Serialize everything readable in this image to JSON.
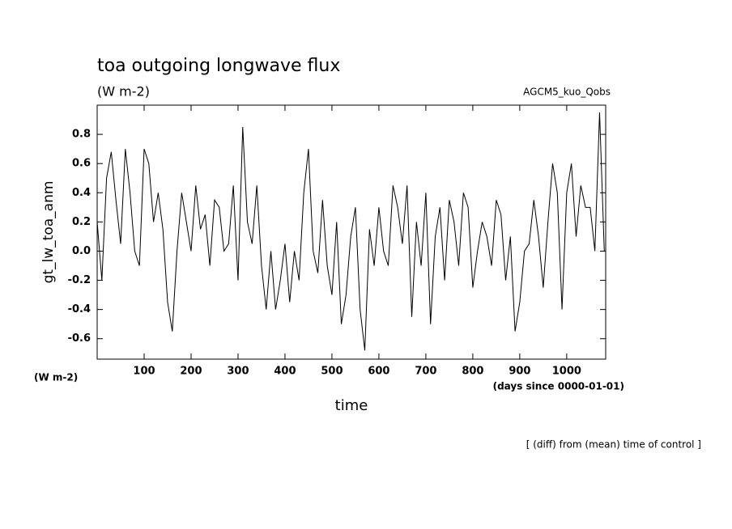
{
  "chart_data": {
    "type": "line",
    "title": "toa outgoing longwave flux",
    "subtitle": "(W m-2)",
    "experiment": "AGCM5_kuo_Qobs",
    "y_label": "gt_lw_toa_anm",
    "y_unit": "(W m-2)",
    "x_label": "time",
    "x_unit": "(days since 0000-01-01)",
    "note": "[ (diff) from (mean) time of control ]",
    "xlim": [
      0,
      1083
    ],
    "ylim": [
      -0.74,
      1.0
    ],
    "xticks": [
      100,
      200,
      300,
      400,
      500,
      600,
      700,
      800,
      900,
      1000
    ],
    "yticks": [
      -0.6,
      -0.4,
      -0.2,
      {
        "value": 0,
        "label": "0.0"
      },
      0.2,
      0.4,
      0.6,
      0.8
    ],
    "color": "#000000",
    "x": [
      0,
      10,
      20,
      30,
      40,
      50,
      60,
      70,
      80,
      90,
      100,
      110,
      120,
      130,
      140,
      150,
      160,
      170,
      180,
      190,
      200,
      210,
      220,
      230,
      240,
      250,
      260,
      270,
      280,
      290,
      300,
      310,
      320,
      330,
      340,
      350,
      360,
      370,
      380,
      390,
      400,
      410,
      420,
      430,
      440,
      450,
      460,
      470,
      480,
      490,
      500,
      510,
      520,
      530,
      540,
      550,
      560,
      570,
      580,
      590,
      600,
      610,
      620,
      630,
      640,
      650,
      660,
      670,
      680,
      690,
      700,
      710,
      720,
      730,
      740,
      750,
      760,
      770,
      780,
      790,
      800,
      810,
      820,
      830,
      840,
      850,
      860,
      870,
      880,
      890,
      900,
      910,
      920,
      930,
      940,
      950,
      960,
      970,
      980,
      990,
      1000,
      1010,
      1020,
      1030,
      1040,
      1050,
      1060,
      1070,
      1080
    ],
    "values": [
      0.2,
      -0.2,
      0.5,
      0.68,
      0.35,
      0.05,
      0.7,
      0.4,
      0,
      -0.1,
      0.7,
      0.6,
      0.2,
      0.4,
      0.15,
      -0.35,
      -0.55,
      0,
      0.4,
      0.2,
      0,
      0.45,
      0.15,
      0.25,
      -0.1,
      0.35,
      0.3,
      0,
      0.05,
      0.45,
      -0.2,
      0.85,
      0.2,
      0.05,
      0.45,
      -0.1,
      -0.4,
      0,
      -0.4,
      -0.2,
      0.05,
      -0.35,
      0,
      -0.2,
      0.4,
      0.7,
      0,
      -0.15,
      0.35,
      -0.1,
      -0.3,
      0.2,
      -0.5,
      -0.3,
      0.1,
      0.3,
      -0.4,
      -0.68,
      0.15,
      -0.1,
      0.3,
      0,
      -0.1,
      0.45,
      0.3,
      0.05,
      0.45,
      -0.45,
      0.2,
      -0.1,
      0.4,
      -0.5,
      0.1,
      0.3,
      -0.2,
      0.35,
      0.2,
      -0.1,
      0.4,
      0.3,
      -0.25,
      0,
      0.2,
      0.1,
      -0.1,
      0.35,
      0.25,
      -0.2,
      0.1,
      -0.55,
      -0.35,
      0,
      0.05,
      0.35,
      0.1,
      -0.25,
      0.2,
      0.6,
      0.4,
      -0.4,
      0.4,
      0.6,
      0.1,
      0.45,
      0.3,
      0.3,
      0,
      0.95,
      0
    ]
  }
}
